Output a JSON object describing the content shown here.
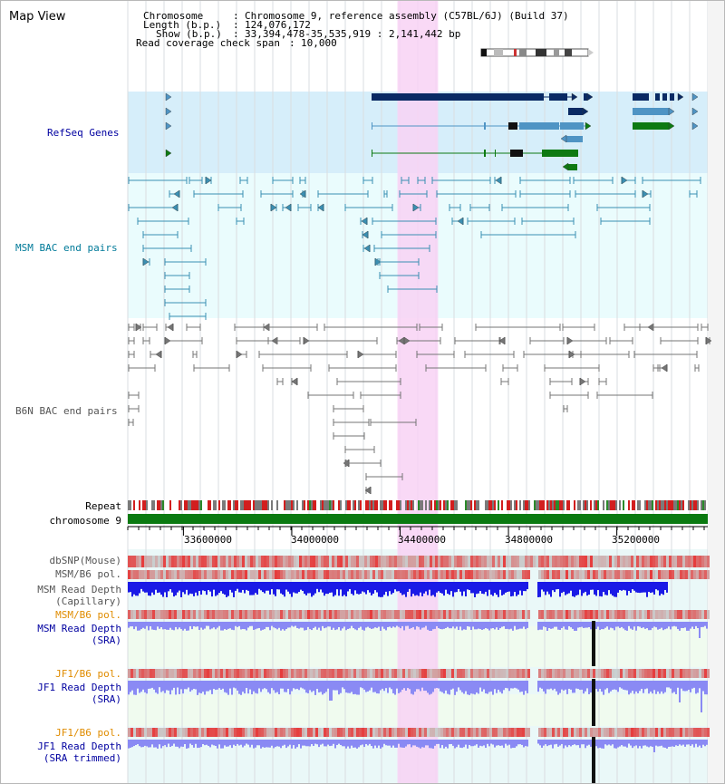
{
  "app": {
    "title": "Map View"
  },
  "header": {
    "chromosome_key": "Chromosome",
    "chromosome_value": "Chromosome 9, reference assembly (C57BL/6J) (Build 37)",
    "length_key": "Length (b.p.)",
    "length_value": "124,076,172",
    "show_key": "Show (b.p.)",
    "show_value": "33,394,478-35,535,919 : 2,141,442 bp",
    "coverage_key": "Read coverage check span",
    "coverage_value": "10,000"
  },
  "view": {
    "start": 33394478,
    "end": 35535919,
    "highlight_start": 34390000,
    "highlight_end": 34540000
  },
  "tracks": {
    "refseq": {
      "label": "RefSeq Genes"
    },
    "msm_bac": {
      "label": "MSM BAC end pairs"
    },
    "b6n_bac": {
      "label": "B6N BAC end pairs"
    },
    "repeat": {
      "label": "Repeat"
    },
    "chromosome": {
      "label": "chromosome 9"
    },
    "dbsnp": {
      "label": "dbSNP(Mouse)"
    },
    "msm_b6_pol": {
      "label": "MSM/B6 pol."
    },
    "msm_depth_cap": {
      "label": "MSM Read Depth\n(Capillary)"
    },
    "msm_b6_pol2": {
      "label": "MSM/B6 pol."
    },
    "msm_depth_sra": {
      "label": "MSM Read Depth\n(SRA)"
    },
    "jf1_b6_pol": {
      "label": "JF1/B6 pol."
    },
    "jf1_depth_sra": {
      "label": "JF1 Read Depth\n(SRA)"
    },
    "jf1_b6_pol2": {
      "label": "JF1/B6 pol."
    },
    "jf1_depth_trim": {
      "label": "JF1 Read Depth\n(SRA trimmed)"
    }
  },
  "axis": {
    "ticks": [
      "33600000",
      "34000000",
      "34400000",
      "34800000",
      "35200000"
    ]
  },
  "colors": {
    "refseq_bg": "#d6eefa",
    "bac_bg": "#eafcfd",
    "highlight": "#f8d2f4",
    "gene_navy": "#0a2a64",
    "gene_steel": "#4f94c4",
    "gene_green": "#0d7a12",
    "msm_pair": "#3b8fb2",
    "b6n_pair": "#757575",
    "chrom": "#0b7a11",
    "depth_dark": "#1a1ae6",
    "depth_light": "#8a8af4",
    "snp_red": "#e53a3a",
    "label_blue": "#0000a0",
    "label_orange": "#e08c00",
    "label_teal": "#007a99",
    "label_gray": "#555555"
  }
}
